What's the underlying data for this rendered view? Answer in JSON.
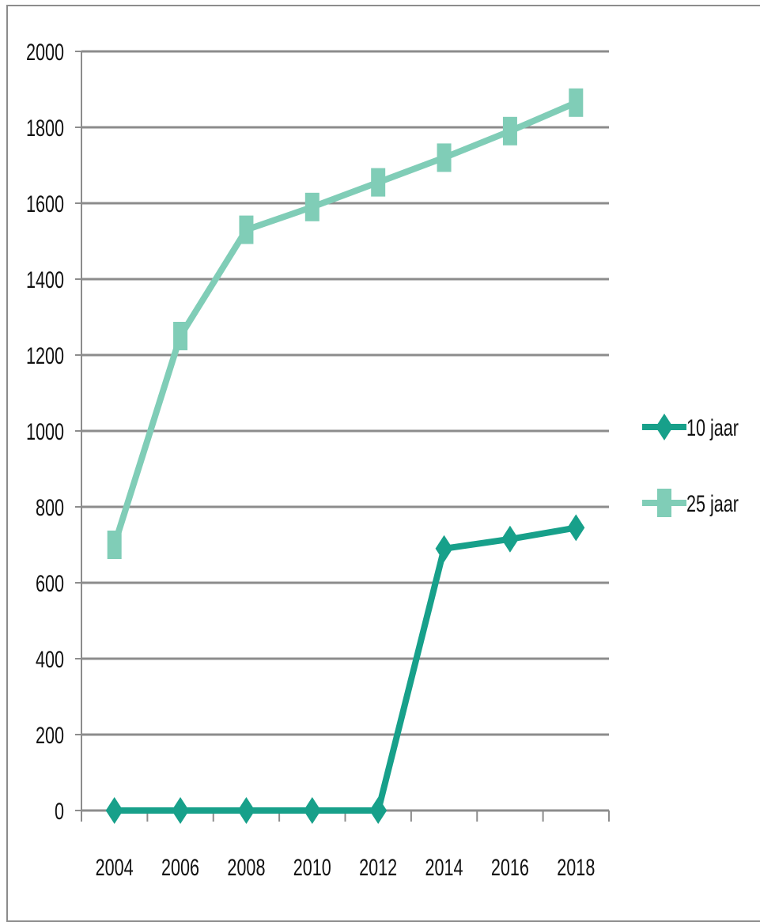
{
  "chart_data": {
    "type": "line",
    "categories": [
      "2004",
      "2006",
      "2008",
      "2010",
      "2012",
      "2014",
      "2016",
      "2018"
    ],
    "series": [
      {
        "name": "10 jaar",
        "values": [
          0,
          0,
          0,
          0,
          0,
          690,
          715,
          745
        ],
        "color": "#17A08A",
        "marker": "diamond"
      },
      {
        "name": "25 jaar",
        "values": [
          700,
          1250,
          1530,
          1590,
          1655,
          1720,
          1790,
          1865
        ],
        "color": "#80CDB7",
        "marker": "square"
      }
    ],
    "ylim": [
      0,
      2000
    ],
    "yticks": [
      0,
      200,
      400,
      600,
      800,
      1000,
      1200,
      1400,
      1600,
      1800,
      2000
    ],
    "grid": true,
    "legend": "right"
  }
}
